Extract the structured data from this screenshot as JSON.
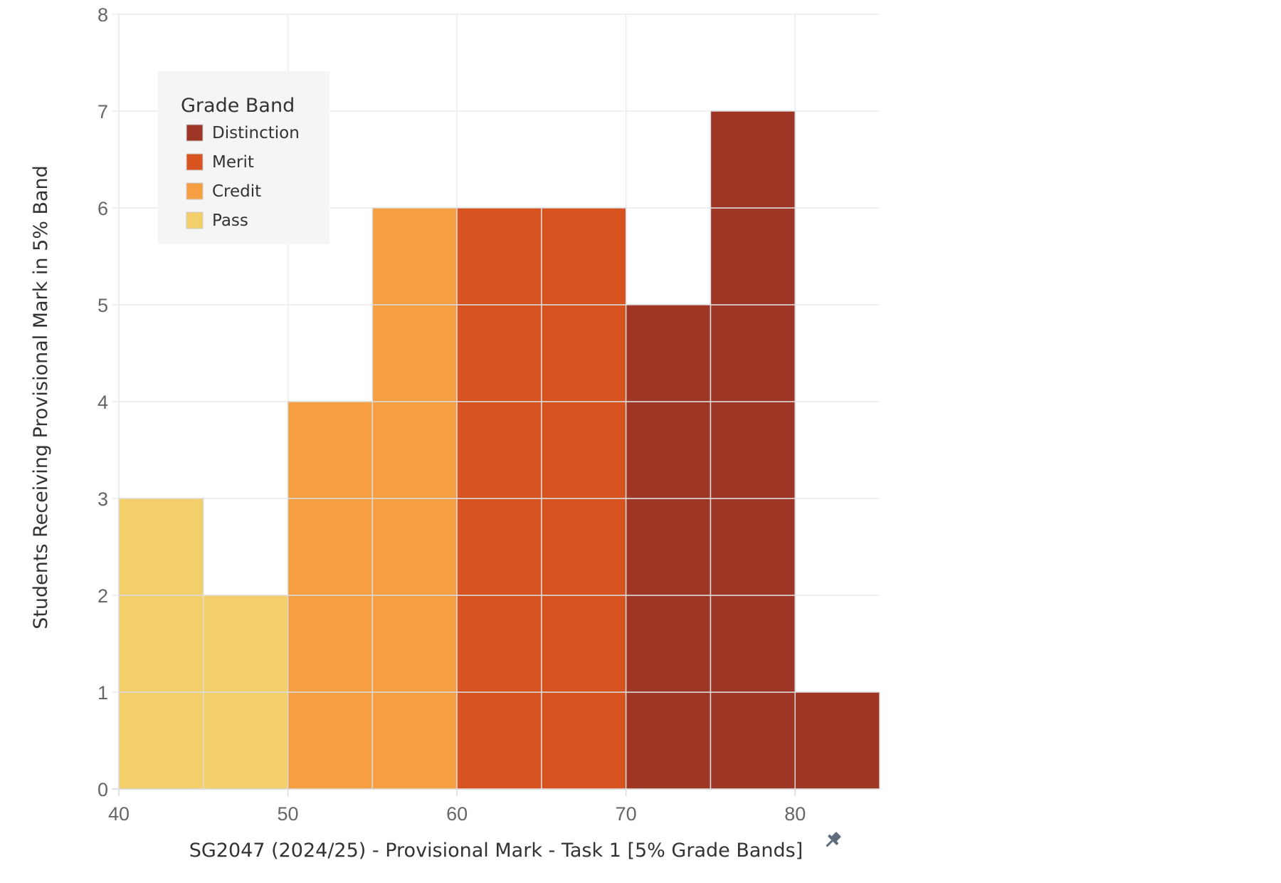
{
  "chart_data": {
    "type": "bar",
    "title": "",
    "xlabel": "SG2047 (2024/25) - Provisional Mark - Task 1 [5% Grade Bands]",
    "ylabel": "Students Receiving Provisional Mark in 5% Band",
    "x_ticks": [
      "40",
      "50",
      "60",
      "70",
      "80"
    ],
    "y_ticks": [
      "0",
      "1",
      "2",
      "3",
      "4",
      "5",
      "6",
      "7",
      "8"
    ],
    "xlim": [
      40,
      85
    ],
    "ylim": [
      0,
      8
    ],
    "bin_width": 5,
    "grid": true,
    "stacked_unit_cells": true,
    "legend": {
      "title": "Grade Band",
      "position": "top-left",
      "items": [
        {
          "name": "Distinction",
          "color": "#9e3625"
        },
        {
          "name": "Merit",
          "color": "#d75420"
        },
        {
          "name": "Credit",
          "color": "#f59e42"
        },
        {
          "name": "Pass",
          "color": "#f2cf69"
        }
      ]
    },
    "bins": [
      {
        "start": 40,
        "end": 45,
        "count": 3,
        "band": "Pass"
      },
      {
        "start": 45,
        "end": 50,
        "count": 2,
        "band": "Pass"
      },
      {
        "start": 50,
        "end": 55,
        "count": 4,
        "band": "Credit"
      },
      {
        "start": 55,
        "end": 60,
        "count": 6,
        "band": "Credit"
      },
      {
        "start": 60,
        "end": 65,
        "count": 6,
        "band": "Merit"
      },
      {
        "start": 65,
        "end": 70,
        "count": 6,
        "band": "Merit"
      },
      {
        "start": 70,
        "end": 75,
        "count": 5,
        "band": "Distinction"
      },
      {
        "start": 75,
        "end": 80,
        "count": 7,
        "band": "Distinction"
      },
      {
        "start": 80,
        "end": 85,
        "count": 1,
        "band": "Distinction"
      }
    ],
    "pin_icon": "pin-icon"
  }
}
